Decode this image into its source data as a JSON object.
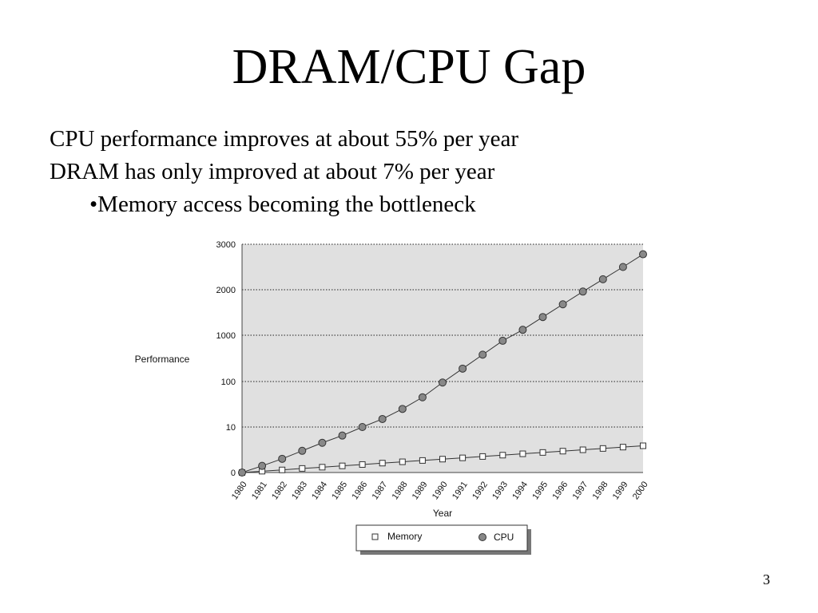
{
  "slide": {
    "title": "DRAM/CPU Gap",
    "bullets": [
      "CPU performance improves at about 55% per year",
      "DRAM has only improved at about 7% per year",
      "•Memory access becoming the bottleneck"
    ],
    "page_number": "3"
  },
  "chart_data": {
    "type": "line",
    "xlabel": "Year",
    "ylabel": "Performance",
    "y_scale": "log",
    "y_ticks": [
      "0",
      "10",
      "100",
      "1000",
      "2000",
      "3000"
    ],
    "x": [
      "1980",
      "1981",
      "1982",
      "1983",
      "1984",
      "1985",
      "1986",
      "1987",
      "1988",
      "1989",
      "1990",
      "1991",
      "1992",
      "1993",
      "1994",
      "1995",
      "1996",
      "1997",
      "1998",
      "1999",
      "2000"
    ],
    "series": [
      {
        "name": "Memory",
        "marker": "square",
        "values": [
          1,
          1.07,
          1.14,
          1.23,
          1.31,
          1.4,
          1.5,
          1.61,
          1.72,
          1.84,
          1.97,
          2.1,
          2.25,
          2.41,
          2.58,
          2.76,
          2.95,
          3.16,
          3.38,
          3.62,
          3.87
        ]
      },
      {
        "name": "CPU",
        "marker": "circle",
        "values": [
          1,
          1.4,
          2,
          3,
          4.5,
          6.5,
          10,
          15,
          25,
          45,
          95,
          190,
          380,
          760,
          1120,
          1400,
          1680,
          1960,
          2230,
          2500,
          2780
        ]
      }
    ],
    "legend_position": "bottom",
    "grid": true,
    "colors": {
      "plot_background": "#e0e0e0",
      "memory_marker_fill": "#ffffff",
      "cpu_marker_fill": "#888888",
      "line": "#333333"
    }
  }
}
